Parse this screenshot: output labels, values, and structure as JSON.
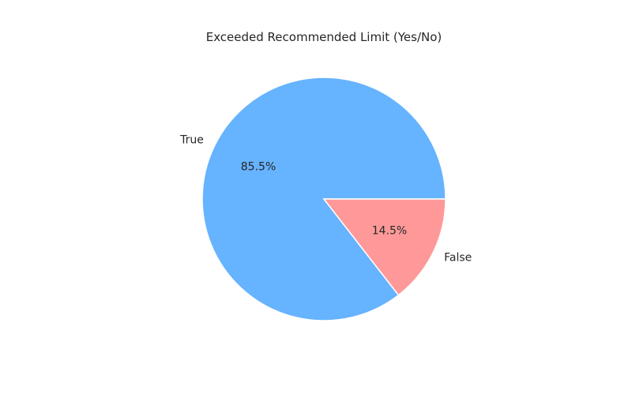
{
  "chart_data": {
    "type": "pie",
    "title": "Exceeded Recommended Limit (Yes/No)",
    "slices": [
      {
        "label": "True",
        "value": 85.5,
        "pct_label": "85.5%",
        "color": "#66b3ff"
      },
      {
        "label": "False",
        "value": 14.5,
        "pct_label": "14.5%",
        "color": "#ff9999"
      }
    ],
    "start_angle_deg": 0,
    "direction": "counterclockwise",
    "edge_color": "#ffffff",
    "legend": "none"
  }
}
